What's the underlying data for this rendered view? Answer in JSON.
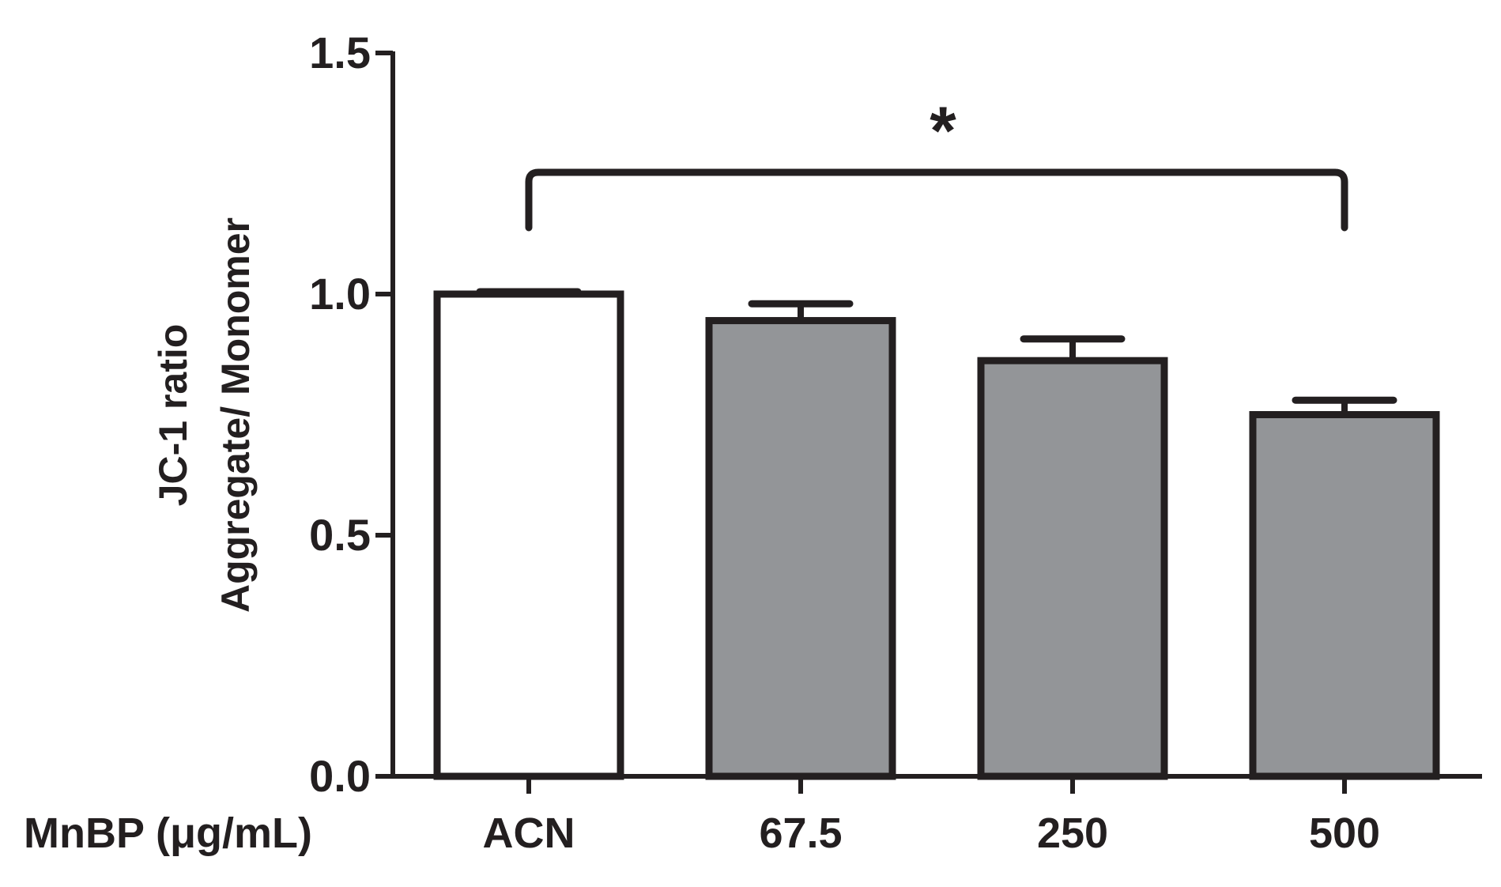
{
  "chart_data": {
    "type": "bar",
    "categories": [
      "ACN",
      "67.5",
      "250",
      "500"
    ],
    "series": [
      {
        "values": [
          1.0,
          0.945,
          0.862,
          0.75
        ],
        "errors": [
          0.005,
          0.035,
          0.045,
          0.03
        ]
      }
    ],
    "bar_colors": [
      "#ffffff",
      "#939598",
      "#939598",
      "#939598"
    ],
    "edge_color": "#231f20",
    "xlabel": "MnBP (μg/mL)",
    "ylabel_lines": [
      "JC-1 ratio",
      "Aggregate/ Monomer"
    ],
    "ylim": [
      0,
      1.5
    ],
    "yticks": [
      0.0,
      0.5,
      1.0,
      1.5
    ],
    "ytick_labels": [
      "0.0",
      "0.5",
      "1.0",
      "1.5"
    ],
    "grid": false,
    "significance": {
      "from": "ACN",
      "to": "500",
      "label": "*"
    }
  }
}
